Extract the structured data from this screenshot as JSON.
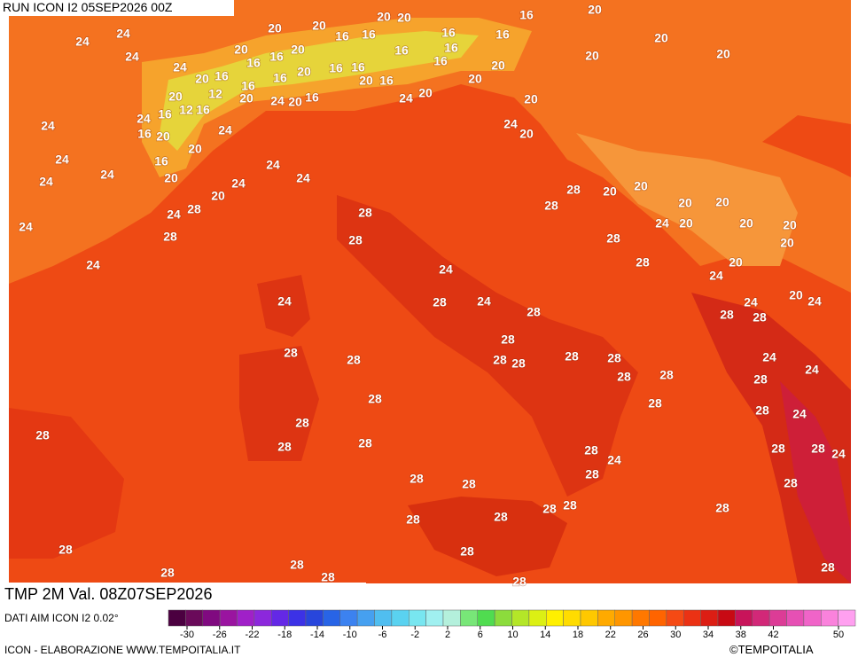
{
  "header": {
    "run": "RUN ICON I2 05SEP2026 00Z"
  },
  "map": {
    "labels": [
      24,
      24,
      24,
      24,
      20,
      20,
      20,
      20,
      16,
      16,
      16,
      20,
      20,
      20,
      16,
      16,
      16,
      20,
      16,
      16,
      20,
      16,
      16,
      16,
      16,
      20,
      20,
      20,
      16,
      16,
      16,
      20,
      20,
      16,
      20,
      20,
      12,
      12,
      16,
      16,
      24,
      20,
      24,
      20,
      16,
      24,
      20,
      20,
      24,
      16,
      20,
      24,
      24,
      20,
      20,
      24,
      16,
      24,
      24,
      20,
      24,
      24,
      24,
      20,
      28,
      20,
      20,
      28,
      20,
      20,
      28,
      24,
      28,
      24,
      20,
      20,
      20,
      24,
      28,
      28,
      28,
      20,
      24,
      28,
      24,
      20,
      24,
      24,
      28,
      24,
      20,
      24,
      24,
      28,
      28,
      28,
      28,
      28,
      28,
      28,
      28,
      28,
      28,
      24,
      28,
      28,
      28,
      24,
      28,
      28,
      28,
      28,
      24,
      28,
      28,
      28,
      28,
      24,
      28,
      28,
      24,
      28,
      28,
      28,
      28,
      28,
      28,
      28,
      28,
      28,
      28,
      28,
      28,
      28,
      28,
      28,
      28
    ]
  },
  "footer": {
    "valid": "TMP 2M Val. 08Z07SEP2026",
    "source": "DATI AIM ICON I2 0.02°",
    "credit": "ICON - ELABORAZIONE WWW.TEMPOITALIA.IT",
    "brand": "©TEMPOITALIA"
  },
  "colorbar": {
    "ticks": [
      -30,
      -26,
      -22,
      -18,
      -14,
      -10,
      -6,
      -2,
      2,
      6,
      10,
      14,
      18,
      22,
      26,
      30,
      34,
      38,
      42,
      50
    ],
    "colors": [
      "#4b0040",
      "#6a0a5a",
      "#800a80",
      "#9a14a0",
      "#a020c8",
      "#8c28dc",
      "#6428e6",
      "#3c32e6",
      "#2846dc",
      "#2864e6",
      "#3c82f0",
      "#46a0f0",
      "#50bef0",
      "#5ad2f0",
      "#78e6f0",
      "#a0f0f0",
      "#b4f0dc",
      "#78e678",
      "#50dc50",
      "#8cdc3c",
      "#b4e628",
      "#dcf014",
      "#fff000",
      "#ffdc00",
      "#ffc800",
      "#ffaa00",
      "#ff9600",
      "#ff7800",
      "#ff6400",
      "#f54a14",
      "#eb3214",
      "#dc1e14",
      "#c80a14",
      "#c8145a",
      "#d22878",
      "#dc3c96",
      "#e650b4",
      "#f064c8",
      "#fa82dc",
      "#ffa0f0"
    ]
  }
}
